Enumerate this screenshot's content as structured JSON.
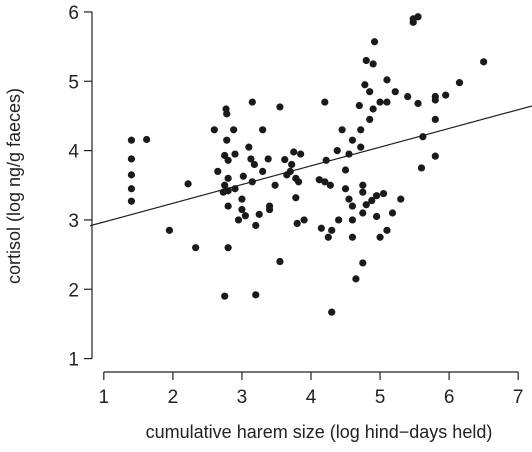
{
  "chart_data": {
    "type": "scatter",
    "xlabel": "cumulative harem size (log hind−days held)",
    "ylabel": "cortisol (log ng/g faeces)",
    "xlim": [
      0.8,
      7.2
    ],
    "ylim": [
      0.85,
      6.1
    ],
    "x_ticks": [
      1,
      2,
      3,
      4,
      5,
      6,
      7
    ],
    "y_ticks": [
      1,
      2,
      3,
      4,
      5,
      6
    ],
    "grid": false,
    "legend": "none",
    "point_color": "#1a1a1a",
    "fit_line": {
      "intercept": 2.7,
      "slope": 0.27,
      "x_start": 0.8,
      "x_end": 7.2
    },
    "points": [
      [
        1.4,
        4.15
      ],
      [
        1.4,
        3.88
      ],
      [
        1.4,
        3.65
      ],
      [
        1.4,
        3.45
      ],
      [
        1.4,
        3.27
      ],
      [
        1.62,
        4.16
      ],
      [
        1.95,
        2.85
      ],
      [
        2.22,
        3.52
      ],
      [
        2.33,
        2.6
      ],
      [
        2.6,
        4.3
      ],
      [
        2.65,
        3.7
      ],
      [
        2.73,
        3.4
      ],
      [
        2.75,
        3.5
      ],
      [
        2.75,
        3.93
      ],
      [
        2.77,
        4.6
      ],
      [
        2.78,
        4.53
      ],
      [
        2.78,
        4.15
      ],
      [
        2.8,
        3.86
      ],
      [
        2.8,
        3.6
      ],
      [
        2.8,
        3.42
      ],
      [
        2.8,
        3.2
      ],
      [
        2.8,
        2.6
      ],
      [
        2.75,
        1.9
      ],
      [
        2.88,
        4.3
      ],
      [
        2.9,
        3.95
      ],
      [
        2.9,
        3.45
      ],
      [
        2.95,
        3.0
      ],
      [
        3.0,
        3.3
      ],
      [
        3.0,
        3.15
      ],
      [
        3.02,
        3.63
      ],
      [
        3.05,
        3.06
      ],
      [
        3.1,
        4.05
      ],
      [
        3.13,
        3.88
      ],
      [
        3.15,
        4.7
      ],
      [
        3.15,
        3.55
      ],
      [
        3.18,
        3.8
      ],
      [
        3.2,
        2.92
      ],
      [
        3.2,
        1.92
      ],
      [
        3.25,
        3.08
      ],
      [
        3.3,
        4.3
      ],
      [
        3.3,
        3.7
      ],
      [
        3.38,
        3.88
      ],
      [
        3.4,
        3.2
      ],
      [
        3.4,
        3.15
      ],
      [
        3.48,
        3.5
      ],
      [
        3.55,
        4.63
      ],
      [
        3.55,
        2.4
      ],
      [
        3.62,
        3.87
      ],
      [
        3.65,
        3.65
      ],
      [
        3.7,
        3.7
      ],
      [
        3.72,
        3.8
      ],
      [
        3.75,
        3.98
      ],
      [
        3.78,
        3.6
      ],
      [
        3.78,
        3.32
      ],
      [
        3.8,
        2.95
      ],
      [
        3.82,
        3.55
      ],
      [
        3.85,
        3.95
      ],
      [
        3.9,
        3.0
      ],
      [
        4.12,
        3.58
      ],
      [
        4.15,
        2.88
      ],
      [
        4.2,
        4.7
      ],
      [
        4.2,
        3.55
      ],
      [
        4.22,
        3.86
      ],
      [
        4.25,
        2.75
      ],
      [
        4.28,
        3.5
      ],
      [
        4.3,
        1.67
      ],
      [
        4.3,
        2.85
      ],
      [
        4.38,
        4.0
      ],
      [
        4.4,
        3.0
      ],
      [
        4.45,
        4.3
      ],
      [
        4.5,
        3.72
      ],
      [
        4.5,
        3.45
      ],
      [
        4.55,
        3.95
      ],
      [
        4.55,
        3.3
      ],
      [
        4.6,
        4.15
      ],
      [
        4.6,
        3.2
      ],
      [
        4.6,
        3.0
      ],
      [
        4.6,
        2.75
      ],
      [
        4.65,
        2.15
      ],
      [
        4.7,
        4.65
      ],
      [
        4.72,
        4.3
      ],
      [
        4.72,
        4.05
      ],
      [
        4.75,
        3.5
      ],
      [
        4.75,
        3.4
      ],
      [
        4.75,
        3.1
      ],
      [
        4.75,
        2.38
      ],
      [
        4.78,
        4.95
      ],
      [
        4.8,
        5.3
      ],
      [
        4.8,
        3.22
      ],
      [
        4.85,
        4.85
      ],
      [
        4.85,
        4.45
      ],
      [
        4.88,
        3.28
      ],
      [
        4.9,
        5.25
      ],
      [
        4.9,
        4.6
      ],
      [
        4.92,
        5.57
      ],
      [
        4.95,
        3.35
      ],
      [
        4.95,
        3.05
      ],
      [
        5.0,
        4.7
      ],
      [
        5.0,
        2.75
      ],
      [
        5.05,
        3.38
      ],
      [
        5.1,
        5.02
      ],
      [
        5.1,
        4.7
      ],
      [
        5.1,
        2.85
      ],
      [
        5.18,
        3.1
      ],
      [
        5.22,
        4.85
      ],
      [
        5.3,
        3.3
      ],
      [
        5.4,
        4.78
      ],
      [
        5.48,
        5.9
      ],
      [
        5.48,
        5.85
      ],
      [
        5.55,
        5.93
      ],
      [
        5.55,
        4.68
      ],
      [
        5.6,
        3.75
      ],
      [
        5.62,
        4.2
      ],
      [
        5.8,
        4.78
      ],
      [
        5.8,
        4.73
      ],
      [
        5.8,
        4.45
      ],
      [
        5.8,
        3.92
      ],
      [
        5.95,
        4.8
      ],
      [
        6.15,
        4.98
      ],
      [
        6.5,
        5.28
      ]
    ]
  }
}
